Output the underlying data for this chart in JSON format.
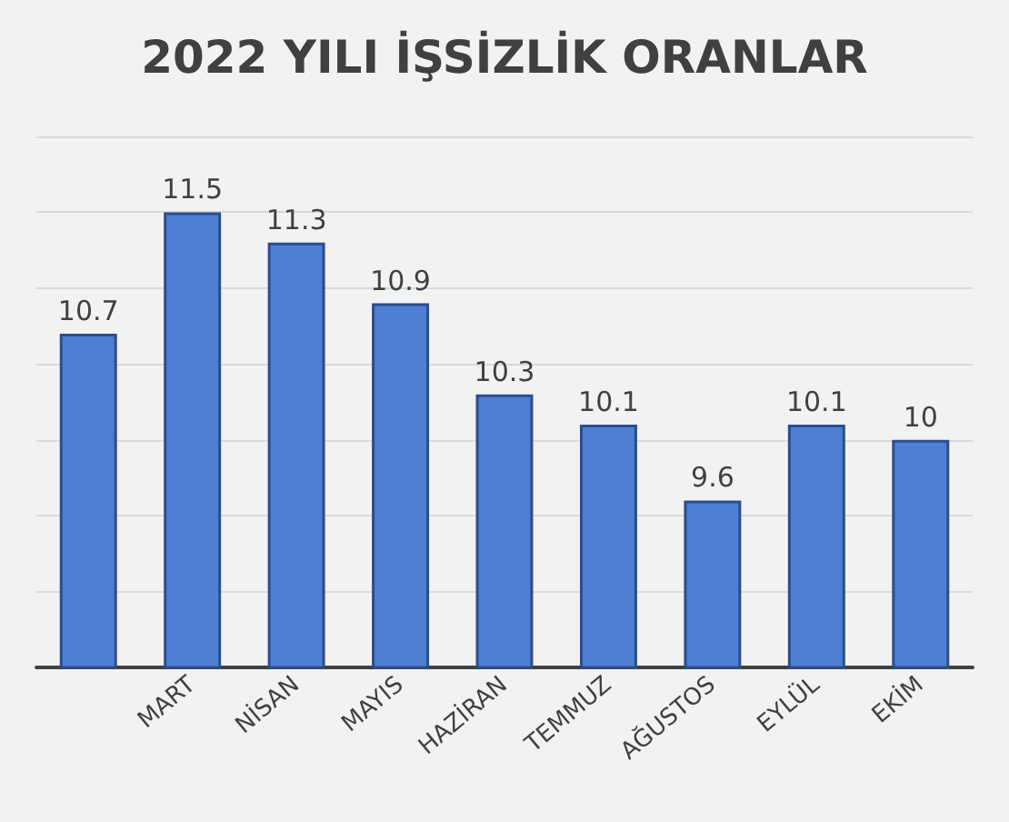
{
  "chart_data": {
    "type": "bar",
    "title": "2022 YILI İŞSİZLİK ORANLAR",
    "categories": [
      null,
      "MART",
      "NİSAN",
      "MAYIS",
      "HAZİRAN",
      "TEMMUZ",
      "AĞUSTOS",
      "EYLÜL",
      "EKİM"
    ],
    "values": [
      10.7,
      11.5,
      11.3,
      10.9,
      10.3,
      10.1,
      9.6,
      10.1,
      10.0
    ],
    "color": "#4f7fd2",
    "ylim": [
      8.5,
      12
    ],
    "yticks": [
      {
        "value": 8.5,
        "label": null
      },
      {
        "value": 9,
        "label": null
      },
      {
        "value": 9.5,
        "label": null
      },
      {
        "value": 10,
        "label": null
      },
      {
        "value": 10.5,
        "label": null
      },
      {
        "value": 11,
        "label": null
      },
      {
        "value": 11.5,
        "label": null
      },
      {
        "value": 12,
        "label": null
      }
    ],
    "grid": "y",
    "data_labels": true,
    "tick_labels": "x"
  }
}
